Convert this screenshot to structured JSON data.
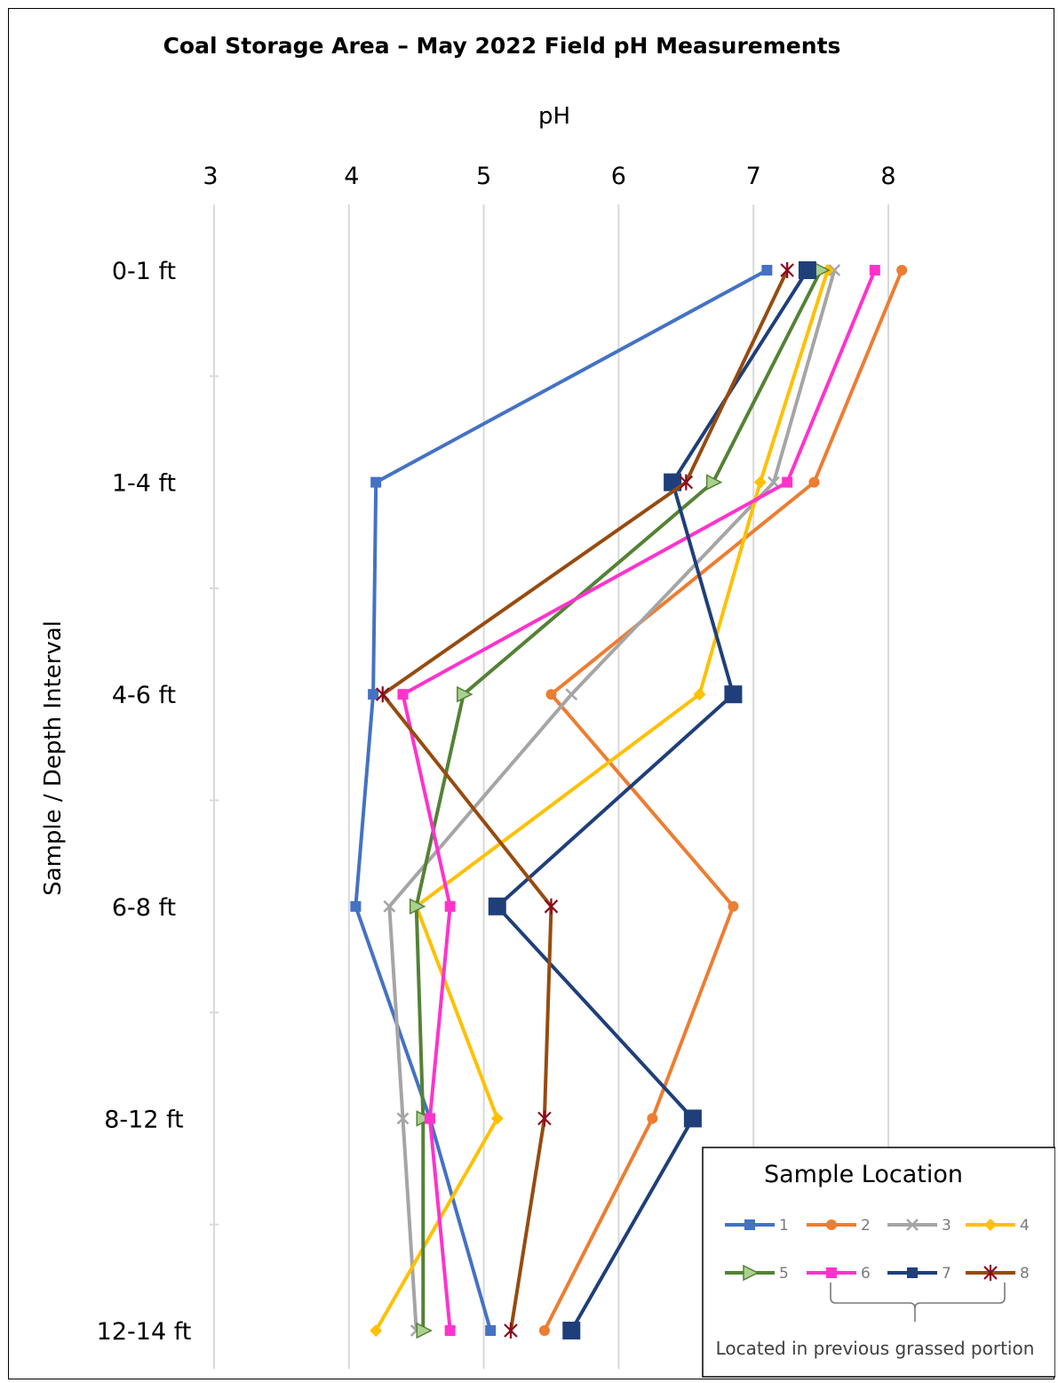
{
  "chart_data": {
    "type": "line",
    "title": "Coal Storage Area – May 2022 Field pH Measurements",
    "xlabel": "pH",
    "ylabel": "Sample / Depth Interval",
    "x_ticks": [
      3,
      4,
      5,
      6,
      7,
      8
    ],
    "xlim": [
      3,
      8.9
    ],
    "categories": [
      "0-1 ft",
      "1-4 ft",
      "4-6 ft",
      "6-8 ft",
      "8-12 ft",
      "12-14 ft"
    ],
    "grid": true,
    "legend_title": "Sample Location",
    "legend_position": "bottom-right",
    "legend_note": "Located in previous grassed portion",
    "series": [
      {
        "name": "1",
        "color": "#4472c4",
        "marker": "square",
        "x": [
          7.1,
          4.2,
          4.18,
          4.05,
          4.6,
          5.05
        ]
      },
      {
        "name": "2",
        "color": "#ed7d31",
        "marker": "circle",
        "x": [
          8.1,
          7.45,
          5.5,
          6.85,
          6.25,
          5.45
        ]
      },
      {
        "name": "3",
        "color": "#a5a5a5",
        "marker": "x",
        "x": [
          7.6,
          7.15,
          5.65,
          4.3,
          4.4,
          4.5
        ]
      },
      {
        "name": "4",
        "color": "#ffc000",
        "marker": "diamond",
        "x": [
          7.55,
          7.05,
          6.6,
          4.5,
          5.1,
          4.2
        ]
      },
      {
        "name": "5",
        "color": "#548235",
        "marker": "triangle",
        "x": [
          7.5,
          6.7,
          4.85,
          4.5,
          4.55,
          4.55
        ]
      },
      {
        "name": "6",
        "color": "#ff33cc",
        "marker": "square",
        "x": [
          7.9,
          7.25,
          4.4,
          4.75,
          4.6,
          4.75
        ]
      },
      {
        "name": "7",
        "color": "#1f3f7a",
        "marker": "square-large",
        "x": [
          7.4,
          6.4,
          6.85,
          5.1,
          6.55,
          5.65
        ]
      },
      {
        "name": "8",
        "color": "#8b0a1e",
        "line_color": "#964b0f",
        "marker": "star",
        "x": [
          7.25,
          6.5,
          4.25,
          5.5,
          5.45,
          5.2
        ]
      }
    ]
  }
}
